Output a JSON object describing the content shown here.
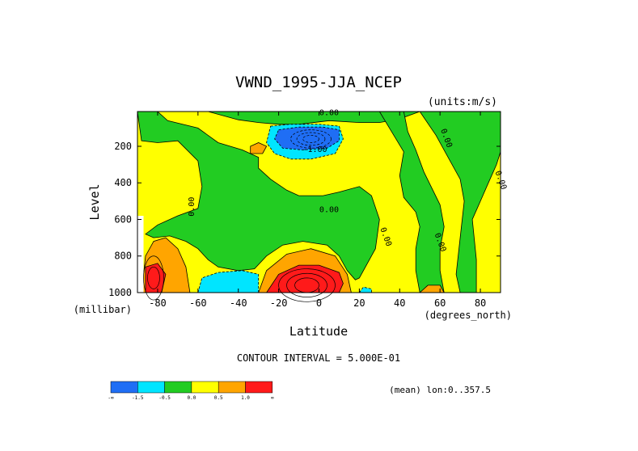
{
  "chart_data": {
    "type": "contour",
    "title": "VWND_1995-JJA_NCEP",
    "units": "(units:m/s)",
    "xlabel": "Latitude",
    "ylabel": "Level",
    "x_units": "(degrees_north)",
    "y_units": "(millibar)",
    "xlim": [
      -90,
      90
    ],
    "ylim": [
      1000,
      10
    ],
    "x_ticks": [
      -80,
      -60,
      -40,
      -20,
      0,
      20,
      40,
      60,
      80
    ],
    "x_tick_labels": [
      "-80",
      "-60",
      "-40",
      "-20",
      "0",
      "20",
      "40",
      "60",
      "80"
    ],
    "y_ticks": [
      200,
      400,
      600,
      800,
      1000
    ],
    "y_tick_labels": [
      "200",
      "400",
      "600",
      "800",
      "1000"
    ],
    "contour_interval_text": "CONTOUR INTERVAL = 5.000E-01",
    "footer": "(mean) lon:0..357.5",
    "contour_labels": [
      {
        "text": "0.00",
        "lat": 5,
        "lev": 30
      },
      {
        "text": "-1.00",
        "lat": -2,
        "lev": 230
      },
      {
        "text": "0.00",
        "lat": 62,
        "lev": 160
      },
      {
        "text": "0.00",
        "lat": 89,
        "lev": 390
      },
      {
        "text": "0.00",
        "lat": -62,
        "lev": 530
      },
      {
        "text": "0.00",
        "lat": 5,
        "lev": 560
      },
      {
        "text": "0.00",
        "lat": 32,
        "lev": 700
      },
      {
        "text": "0.00",
        "lat": 59,
        "lev": 730
      }
    ],
    "legend": {
      "colors": [
        "#1f6ef5",
        "#00e5ff",
        "#22cc22",
        "#ffff00",
        "#ffa500",
        "#ff1a1a"
      ],
      "labels": [
        "-∞",
        "-1.5",
        "-0.5",
        "0.0",
        "0.5",
        "1.0",
        "∞"
      ]
    },
    "regions": [
      {
        "level": "yellow",
        "color": "#ffff00",
        "poly": [
          [
            -90,
            10
          ],
          [
            90,
            10
          ],
          [
            90,
            1000
          ],
          [
            -90,
            1000
          ]
        ]
      },
      {
        "level": "green",
        "color": "#22cc22",
        "poly": [
          [
            -90,
            10
          ],
          [
            -88,
            170
          ],
          [
            -80,
            180
          ],
          [
            -70,
            170
          ],
          [
            -60,
            280
          ],
          [
            -58,
            420
          ],
          [
            -60,
            540
          ],
          [
            -70,
            580
          ],
          [
            -80,
            630
          ],
          [
            -86,
            680
          ],
          [
            -82,
            700
          ],
          [
            -74,
            690
          ],
          [
            -66,
            720
          ],
          [
            -60,
            760
          ],
          [
            -55,
            820
          ],
          [
            -50,
            860
          ],
          [
            -40,
            880
          ],
          [
            -32,
            870
          ],
          [
            -26,
            800
          ],
          [
            -18,
            740
          ],
          [
            -8,
            720
          ],
          [
            4,
            740
          ],
          [
            10,
            800
          ],
          [
            14,
            880
          ],
          [
            18,
            930
          ],
          [
            20,
            920
          ],
          [
            28,
            760
          ],
          [
            30,
            600
          ],
          [
            26,
            470
          ],
          [
            20,
            420
          ],
          [
            10,
            450
          ],
          [
            2,
            470
          ],
          [
            -10,
            470
          ],
          [
            -16,
            440
          ],
          [
            -24,
            380
          ],
          [
            -30,
            320
          ],
          [
            -30,
            260
          ],
          [
            -38,
            220
          ],
          [
            -50,
            180
          ],
          [
            -60,
            100
          ],
          [
            -75,
            60
          ],
          [
            -80,
            10
          ]
        ]
      },
      {
        "level": "green",
        "color": "#22cc22",
        "poly": [
          [
            -55,
            10
          ],
          [
            -40,
            55
          ],
          [
            -30,
            70
          ],
          [
            -20,
            80
          ],
          [
            -10,
            80
          ],
          [
            5,
            60
          ],
          [
            20,
            70
          ],
          [
            30,
            70
          ],
          [
            40,
            50
          ],
          [
            50,
            10
          ]
        ]
      },
      {
        "level": "green",
        "color": "#22cc22",
        "poly": [
          [
            50,
            10
          ],
          [
            58,
            140
          ],
          [
            64,
            260
          ],
          [
            70,
            380
          ],
          [
            72,
            500
          ],
          [
            70,
            700
          ],
          [
            68,
            900
          ],
          [
            70,
            1000
          ],
          [
            78,
            1000
          ],
          [
            78,
            820
          ],
          [
            76,
            600
          ],
          [
            80,
            500
          ],
          [
            84,
            400
          ],
          [
            88,
            300
          ],
          [
            90,
            230
          ],
          [
            90,
            10
          ]
        ]
      },
      {
        "level": "green",
        "color": "#22cc22",
        "poly": [
          [
            30,
            10
          ],
          [
            36,
            120
          ],
          [
            42,
            230
          ],
          [
            40,
            360
          ],
          [
            42,
            480
          ],
          [
            48,
            560
          ],
          [
            50,
            640
          ],
          [
            48,
            760
          ],
          [
            48,
            880
          ],
          [
            50,
            1000
          ],
          [
            62,
            1000
          ],
          [
            60,
            880
          ],
          [
            60,
            760
          ],
          [
            62,
            640
          ],
          [
            60,
            520
          ],
          [
            52,
            340
          ],
          [
            48,
            220
          ],
          [
            44,
            120
          ],
          [
            42,
            10
          ]
        ]
      },
      {
        "level": "cyan",
        "color": "#00e5ff",
        "poly": [
          [
            -24,
            90
          ],
          [
            -14,
            80
          ],
          [
            0,
            80
          ],
          [
            10,
            90
          ],
          [
            12,
            160
          ],
          [
            8,
            240
          ],
          [
            -4,
            270
          ],
          [
            -14,
            270
          ],
          [
            -22,
            240
          ],
          [
            -26,
            180
          ]
        ]
      },
      {
        "level": "blue",
        "color": "#1f6ef5",
        "poly": [
          [
            -20,
            110
          ],
          [
            -10,
            95
          ],
          [
            2,
            95
          ],
          [
            10,
            110
          ],
          [
            10,
            170
          ],
          [
            4,
            210
          ],
          [
            -8,
            220
          ],
          [
            -18,
            210
          ],
          [
            -22,
            160
          ]
        ]
      },
      {
        "level": "cyan",
        "color": "#00e5ff",
        "poly": [
          [
            -60,
            1000
          ],
          [
            -58,
            920
          ],
          [
            -50,
            890
          ],
          [
            -38,
            880
          ],
          [
            -30,
            900
          ],
          [
            -30,
            1000
          ]
        ]
      },
      {
        "level": "cyan",
        "color": "#00e5ff",
        "poly": [
          [
            20,
            1000
          ],
          [
            22,
            970
          ],
          [
            26,
            980
          ],
          [
            26,
            1000
          ]
        ]
      },
      {
        "level": "orange",
        "color": "#ffa500",
        "poly": [
          [
            -34,
            200
          ],
          [
            -30,
            180
          ],
          [
            -26,
            200
          ],
          [
            -28,
            240
          ],
          [
            -34,
            240
          ]
        ]
      },
      {
        "level": "orange",
        "color": "#ffa500",
        "poly": [
          [
            -30,
            1000
          ],
          [
            -26,
            880
          ],
          [
            -16,
            790
          ],
          [
            -4,
            760
          ],
          [
            8,
            800
          ],
          [
            14,
            900
          ],
          [
            16,
            1000
          ]
        ]
      },
      {
        "level": "red",
        "color": "#ff1a1a",
        "poly": [
          [
            -26,
            1000
          ],
          [
            -20,
            900
          ],
          [
            -10,
            850
          ],
          [
            0,
            850
          ],
          [
            10,
            890
          ],
          [
            12,
            950
          ],
          [
            10,
            1000
          ]
        ]
      },
      {
        "level": "orange",
        "color": "#ffa500",
        "poly": [
          [
            -88,
            1000
          ],
          [
            -86,
            800
          ],
          [
            -82,
            720
          ],
          [
            -76,
            700
          ],
          [
            -70,
            760
          ],
          [
            -66,
            860
          ],
          [
            -64,
            1000
          ]
        ]
      },
      {
        "level": "red",
        "color": "#ff1a1a",
        "poly": [
          [
            -86,
            1000
          ],
          [
            -86,
            860
          ],
          [
            -80,
            840
          ],
          [
            -76,
            900
          ],
          [
            -78,
            1000
          ]
        ]
      },
      {
        "level": "orange",
        "color": "#ffa500",
        "poly": [
          [
            50,
            1000
          ],
          [
            54,
            960
          ],
          [
            60,
            960
          ],
          [
            62,
            1000
          ]
        ]
      },
      {
        "level": "masked",
        "color": "#ffffff",
        "poly": [
          [
            -90,
            580
          ],
          [
            -87,
            580
          ],
          [
            -87,
            1000
          ],
          [
            -90,
            1000
          ]
        ]
      }
    ]
  }
}
